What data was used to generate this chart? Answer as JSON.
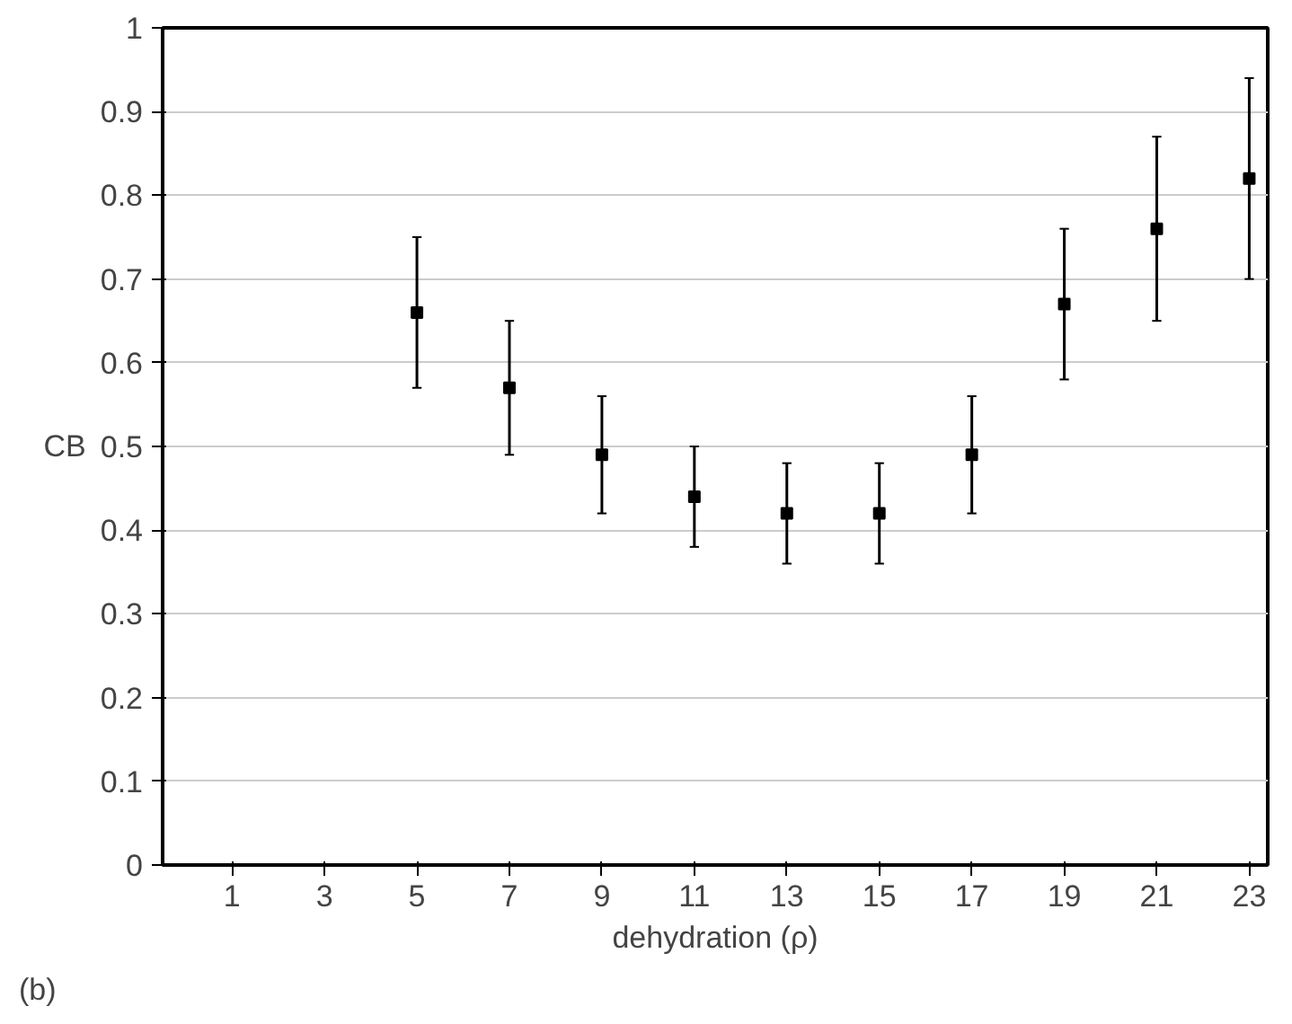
{
  "chart_data": {
    "type": "scatter",
    "xlabel": "dehydration (ρ)",
    "ylabel": "CB",
    "annotations": [
      "(b)"
    ],
    "x": [
      5,
      7,
      9,
      11,
      13,
      15,
      17,
      19,
      21,
      23
    ],
    "series": [
      {
        "color": "#000000",
        "values": [
          0.66,
          0.57,
          0.49,
          0.44,
          0.42,
          0.42,
          0.49,
          0.67,
          0.76,
          0.82
        ],
        "errors": [
          [
            0.57,
            0.75
          ],
          [
            0.49,
            0.65
          ],
          [
            0.42,
            0.56
          ],
          [
            0.38,
            0.5
          ],
          [
            0.36,
            0.48
          ],
          [
            0.36,
            0.48
          ],
          [
            0.42,
            0.56
          ],
          [
            0.58,
            0.76
          ],
          [
            0.65,
            0.87
          ],
          [
            0.7,
            0.94
          ]
        ]
      }
    ],
    "xlim": [
      -0.5,
      23.4
    ],
    "xticks": [
      1,
      3,
      5,
      7,
      9,
      11,
      13,
      15,
      17,
      19,
      21,
      23
    ],
    "ylim": [
      0,
      1
    ],
    "yticks": [
      0,
      {
        "value": 0.1,
        "label": "0.1"
      },
      {
        "value": 0.2,
        "label": "0.2"
      },
      {
        "value": 0.3,
        "label": "0.3"
      },
      {
        "value": 0.4,
        "label": "0.4"
      },
      {
        "value": 0.5,
        "label": "0.5"
      },
      {
        "value": 0.6,
        "label": "0.6"
      },
      {
        "value": 0.7,
        "label": "0.7"
      },
      {
        "value": 0.8,
        "label": "0.8"
      },
      {
        "value": 0.9,
        "label": "0.9"
      },
      1
    ],
    "grid": "y",
    "marker": "square"
  }
}
